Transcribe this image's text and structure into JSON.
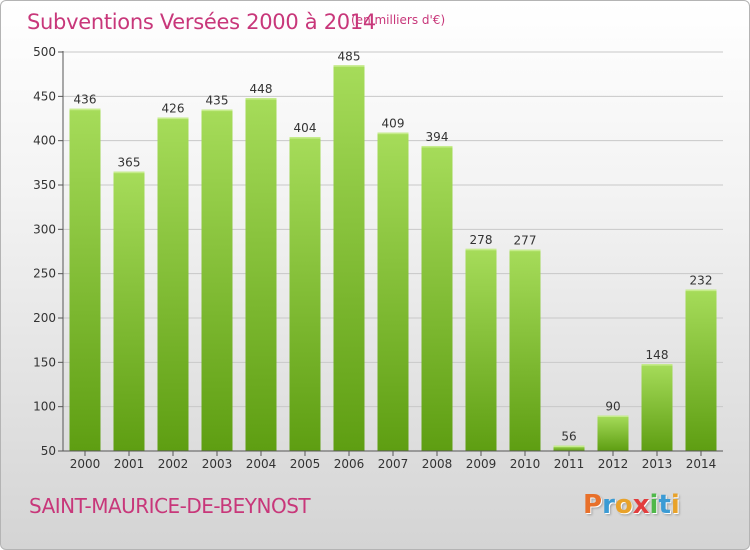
{
  "title": "Subventions Versées 2000 à 2014",
  "subtitle": "(en milliers d'€)",
  "commune": "SAINT-MAURICE-DE-BEYNOST",
  "logo": {
    "letters": [
      "P",
      "r",
      "o",
      "x",
      "i",
      "t",
      "i"
    ],
    "colors": [
      "#e8702a",
      "#3b9bd4",
      "#e8a22a",
      "#e23d3d",
      "#4fb84a",
      "#3b9bd4",
      "#e8a22a"
    ]
  },
  "colors": {
    "title": "#c8377a",
    "bar_top": "#a6dc5a",
    "bar_bottom": "#5e9e12"
  },
  "chart_data": {
    "type": "bar",
    "categories": [
      "2000",
      "2001",
      "2002",
      "2003",
      "2004",
      "2005",
      "2006",
      "2007",
      "2008",
      "2009",
      "2010",
      "2011",
      "2012",
      "2013",
      "2014"
    ],
    "values": [
      436,
      365,
      426,
      435,
      448,
      404,
      485,
      409,
      394,
      278,
      277,
      56,
      90,
      148,
      232
    ],
    "ylim": [
      50,
      500
    ],
    "yticks": [
      50,
      100,
      150,
      200,
      250,
      300,
      350,
      400,
      450,
      500
    ],
    "grid": true,
    "data_labels": true
  }
}
